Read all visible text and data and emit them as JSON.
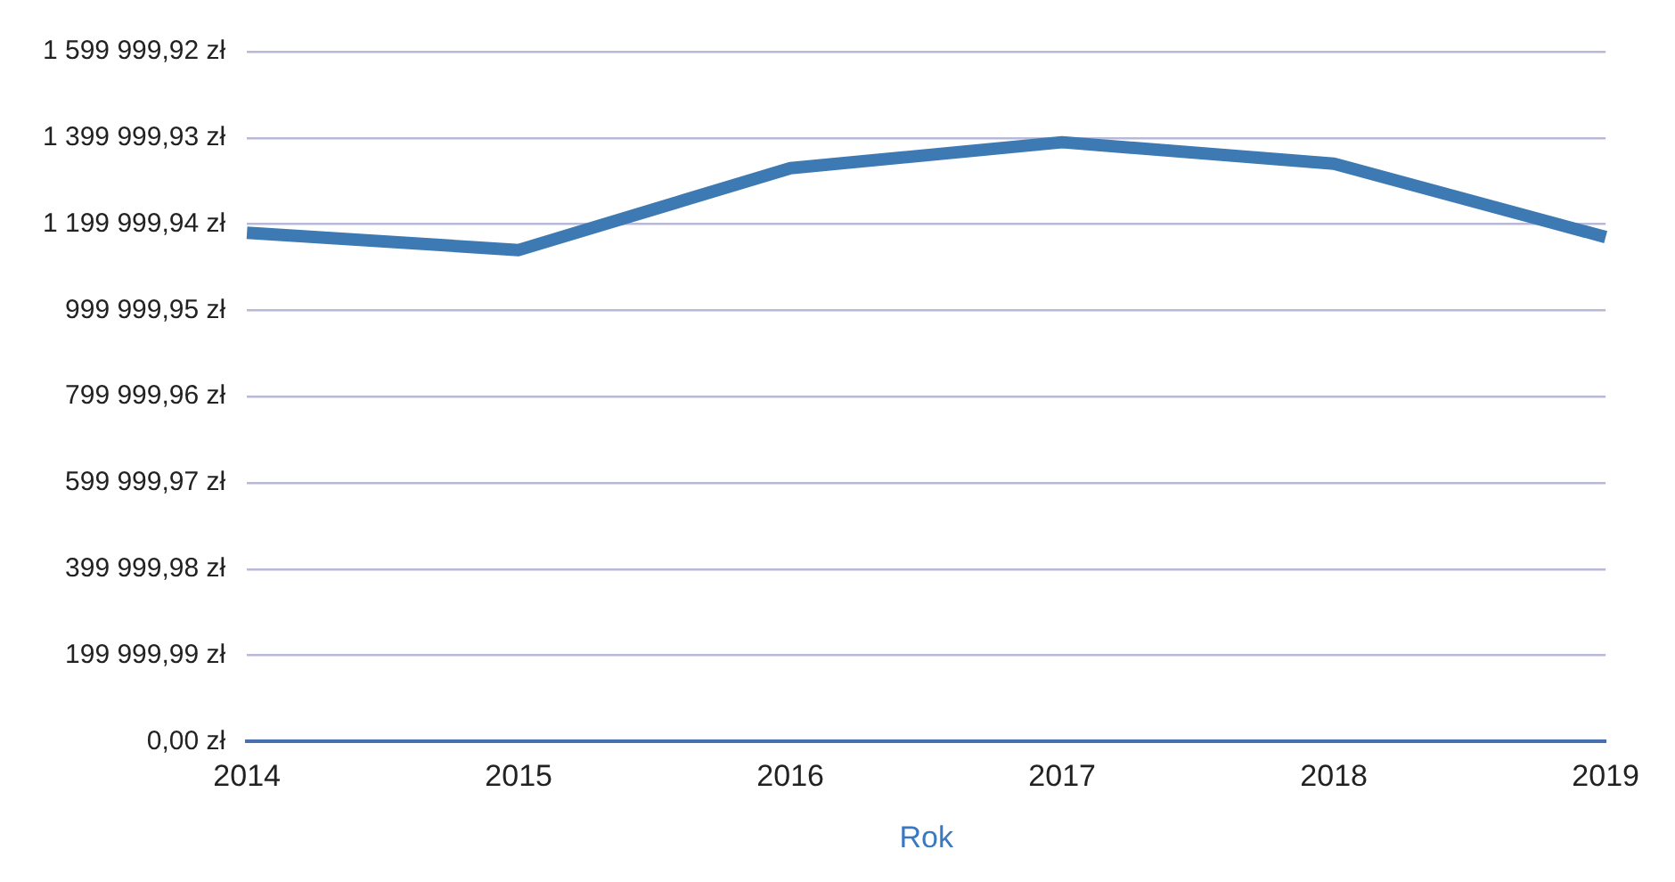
{
  "chart_data": {
    "type": "line",
    "xlabel": "Rok",
    "categories": [
      "2014",
      "2015",
      "2016",
      "2017",
      "2018",
      "2019"
    ],
    "series": [
      {
        "color": "#3d7ab3",
        "values": [
          1180000,
          1140000,
          1330000,
          1390000,
          1340000,
          1170000
        ]
      }
    ],
    "ylim": [
      0,
      1599999.92
    ],
    "yticks": [
      {
        "value": 0,
        "label": "0,00 zł"
      },
      {
        "value": 199999.99,
        "label": "199 999,99 zł"
      },
      {
        "value": 399999.98,
        "label": "399 999,98 zł"
      },
      {
        "value": 599999.97,
        "label": "599 999,97 zł"
      },
      {
        "value": 799999.96,
        "label": "799 999,96 zł"
      },
      {
        "value": 999999.95,
        "label": "999 999,95 zł"
      },
      {
        "value": 1199999.94,
        "label": "1 199 999,94 zł"
      },
      {
        "value": 1399999.93,
        "label": "1 399 999,93 zł"
      },
      {
        "value": 1599999.92,
        "label": "1 599 999,92 zł"
      }
    ],
    "grid": "y",
    "legend": false,
    "marker": "none",
    "line_style": "solid"
  }
}
